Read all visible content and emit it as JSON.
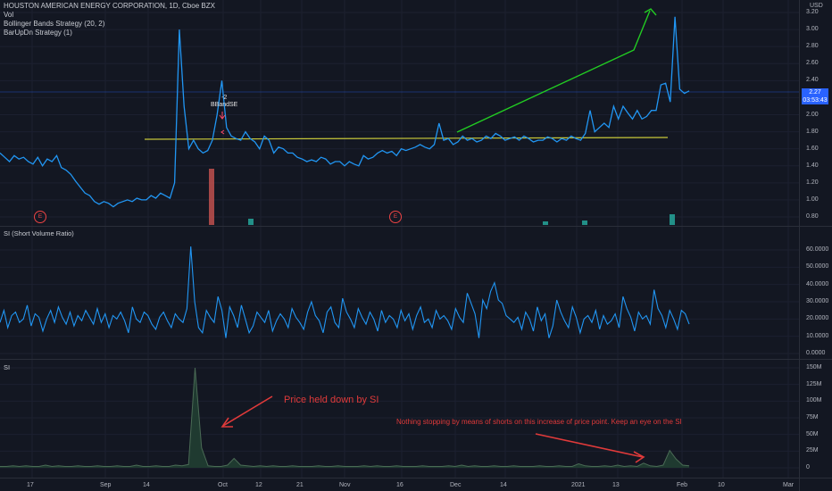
{
  "legend": {
    "symbol": "HOUSTON AMERICAN ENERGY CORPORATION, 1D, Cboe BZX",
    "vol": "Vol",
    "bb": "Bollinger Bands Strategy (20, 2)",
    "barup": "BarUpDn Strategy (1)"
  },
  "currency": "USD",
  "price_axis": [
    "3.20",
    "3.00",
    "2.80",
    "2.60",
    "2.40",
    "2.20",
    "2.00",
    "1.80",
    "1.60",
    "1.40",
    "1.20",
    "1.00",
    "0.80"
  ],
  "price_badge": {
    "price": "2.27",
    "countdown": "03:53:43"
  },
  "svr_pane": {
    "title": "SI (Short Volume Ratio)",
    "axis": [
      "60.0000",
      "50.0000",
      "40.0000",
      "30.0000",
      "20.0000",
      "10.0000",
      "0.0000"
    ]
  },
  "si_pane": {
    "title": "SI",
    "axis": [
      "150M",
      "125M",
      "100M",
      "75M",
      "50M",
      "25M",
      "0"
    ]
  },
  "x_axis": [
    "17",
    "Sep",
    "14",
    "Oct",
    "12",
    "21",
    "Nov",
    "16",
    "Dec",
    "14",
    "2021",
    "13",
    "Feb",
    "10",
    "Mar"
  ],
  "strategy_marker": {
    "count": "-2",
    "label": "BBandSE"
  },
  "earnings_badges": [
    "E",
    "E"
  ],
  "annotations": {
    "si_text": "Price held down by SI",
    "shorts_text": "Nothing stopping by means of shorts on this increase of price point. Keep an eye on the SI"
  },
  "colors": {
    "price_line": "#2196f3",
    "support_line": "#c8c83a",
    "trend_arrow": "#22cc22",
    "annotation": "#e03a3a",
    "volume_down": "#c0504d",
    "volume_up": "#26a69a"
  },
  "chart_data": [
    {
      "type": "line",
      "title": "HOUSTON AMERICAN ENERGY CORPORATION, 1D, Cboe BZX",
      "y_range": [
        0.7,
        3.3
      ],
      "series": [
        {
          "values": [
            1.55,
            1.5,
            1.45,
            1.52,
            1.48,
            1.5,
            1.45,
            1.42,
            1.5,
            1.4,
            1.48,
            1.45,
            1.52,
            1.38,
            1.35,
            1.3,
            1.22,
            1.15,
            1.08,
            1.05,
            0.98,
            0.95,
            0.98,
            0.96,
            0.92,
            0.96,
            0.98,
            1.0,
            0.98,
            1.02,
            1.0,
            1.0,
            1.05,
            1.02,
            1.08,
            1.05,
            1.02,
            1.2,
            3.0,
            2.1,
            1.6,
            1.7,
            1.6,
            1.55,
            1.58,
            1.7,
            2.0,
            2.4,
            1.85,
            1.75,
            1.72,
            1.7,
            1.8,
            1.72,
            1.68,
            1.6,
            1.75,
            1.7,
            1.55,
            1.62,
            1.6,
            1.55,
            1.55,
            1.5,
            1.48,
            1.45,
            1.47,
            1.45,
            1.5,
            1.48,
            1.42,
            1.45,
            1.45,
            1.4,
            1.45,
            1.42,
            1.4,
            1.52,
            1.48,
            1.5,
            1.55,
            1.58,
            1.55,
            1.57,
            1.52,
            1.6,
            1.58,
            1.6,
            1.62,
            1.65,
            1.62,
            1.6,
            1.65,
            1.9,
            1.7,
            1.72,
            1.65,
            1.68,
            1.75,
            1.7,
            1.72,
            1.68,
            1.7,
            1.75,
            1.72,
            1.78,
            1.75,
            1.7,
            1.72,
            1.74,
            1.7,
            1.75,
            1.72,
            1.68,
            1.7,
            1.7,
            1.74,
            1.72,
            1.68,
            1.72,
            1.7,
            1.75,
            1.72,
            1.7,
            1.78,
            2.05,
            1.8,
            1.85,
            1.9,
            1.85,
            2.1,
            1.95,
            2.1,
            2.02,
            1.95,
            2.05,
            1.95,
            1.98,
            2.05,
            2.05,
            2.35,
            2.37,
            2.15,
            3.15,
            2.3,
            2.25,
            2.28
          ]
        }
      ]
    },
    {
      "type": "line",
      "title": "SI (Short Volume Ratio)",
      "y_range": [
        0,
        65
      ],
      "series": [
        {
          "values": [
            18,
            25,
            15,
            22,
            24,
            18,
            20,
            28,
            16,
            23,
            21,
            13,
            20,
            25,
            18,
            27,
            21,
            17,
            24,
            16,
            22,
            19,
            25,
            21,
            17,
            26,
            18,
            23,
            15,
            22,
            20,
            24,
            19,
            12,
            27,
            20,
            18,
            24,
            22,
            17,
            14,
            21,
            24,
            19,
            15,
            23,
            20,
            18,
            26,
            62,
            30,
            15,
            12,
            25,
            21,
            18,
            33,
            25,
            9,
            27,
            22,
            15,
            28,
            20,
            12,
            16,
            24,
            21,
            18,
            25,
            13,
            19,
            23,
            20,
            15,
            26,
            21,
            18,
            14,
            24,
            30,
            22,
            19,
            12,
            24,
            27,
            18,
            15,
            32,
            24,
            20,
            15,
            26,
            21,
            17,
            24,
            20,
            13,
            25,
            18,
            22,
            20,
            15,
            25,
            19,
            23,
            14,
            22,
            27,
            18,
            20,
            15,
            25,
            20,
            22,
            19,
            14,
            26,
            21,
            18,
            35,
            29,
            23,
            9,
            31,
            26,
            36,
            41,
            31,
            29,
            22,
            20,
            18,
            21,
            14,
            24,
            20,
            13,
            27,
            19,
            23,
            9,
            16,
            31,
            24,
            19,
            15,
            27,
            21,
            12,
            20,
            22,
            18,
            25,
            14,
            22,
            17,
            19,
            23,
            15,
            33,
            26,
            21,
            13,
            24,
            20,
            22,
            17,
            37,
            26,
            22,
            15,
            25,
            20,
            14,
            25,
            23,
            17
          ]
        }
      ]
    },
    {
      "type": "area",
      "title": "SI",
      "y_range": [
        0,
        160
      ],
      "series": [
        {
          "values": [
            2,
            2,
            3,
            2,
            3,
            2,
            2,
            4,
            2,
            3,
            2,
            2,
            3,
            2,
            2,
            3,
            2,
            2,
            3,
            2,
            2,
            4,
            2,
            2,
            3,
            2,
            2,
            4,
            3,
            5,
            150,
            30,
            3,
            2,
            2,
            4,
            14,
            4,
            3,
            2,
            3,
            2,
            3,
            2,
            2,
            3,
            2,
            2,
            2,
            3,
            2,
            2,
            3,
            2,
            2,
            2,
            3,
            2,
            3,
            2,
            2,
            3,
            2,
            2,
            2,
            3,
            2,
            2,
            2,
            3,
            2,
            4,
            2,
            3,
            2,
            2,
            3,
            2,
            2,
            3,
            2,
            2,
            2,
            3,
            2,
            2,
            3,
            2,
            2,
            6,
            3,
            2,
            2,
            3,
            2,
            4,
            2,
            3,
            2,
            7,
            3,
            2,
            4,
            26,
            13,
            4,
            3
          ]
        }
      ]
    }
  ]
}
